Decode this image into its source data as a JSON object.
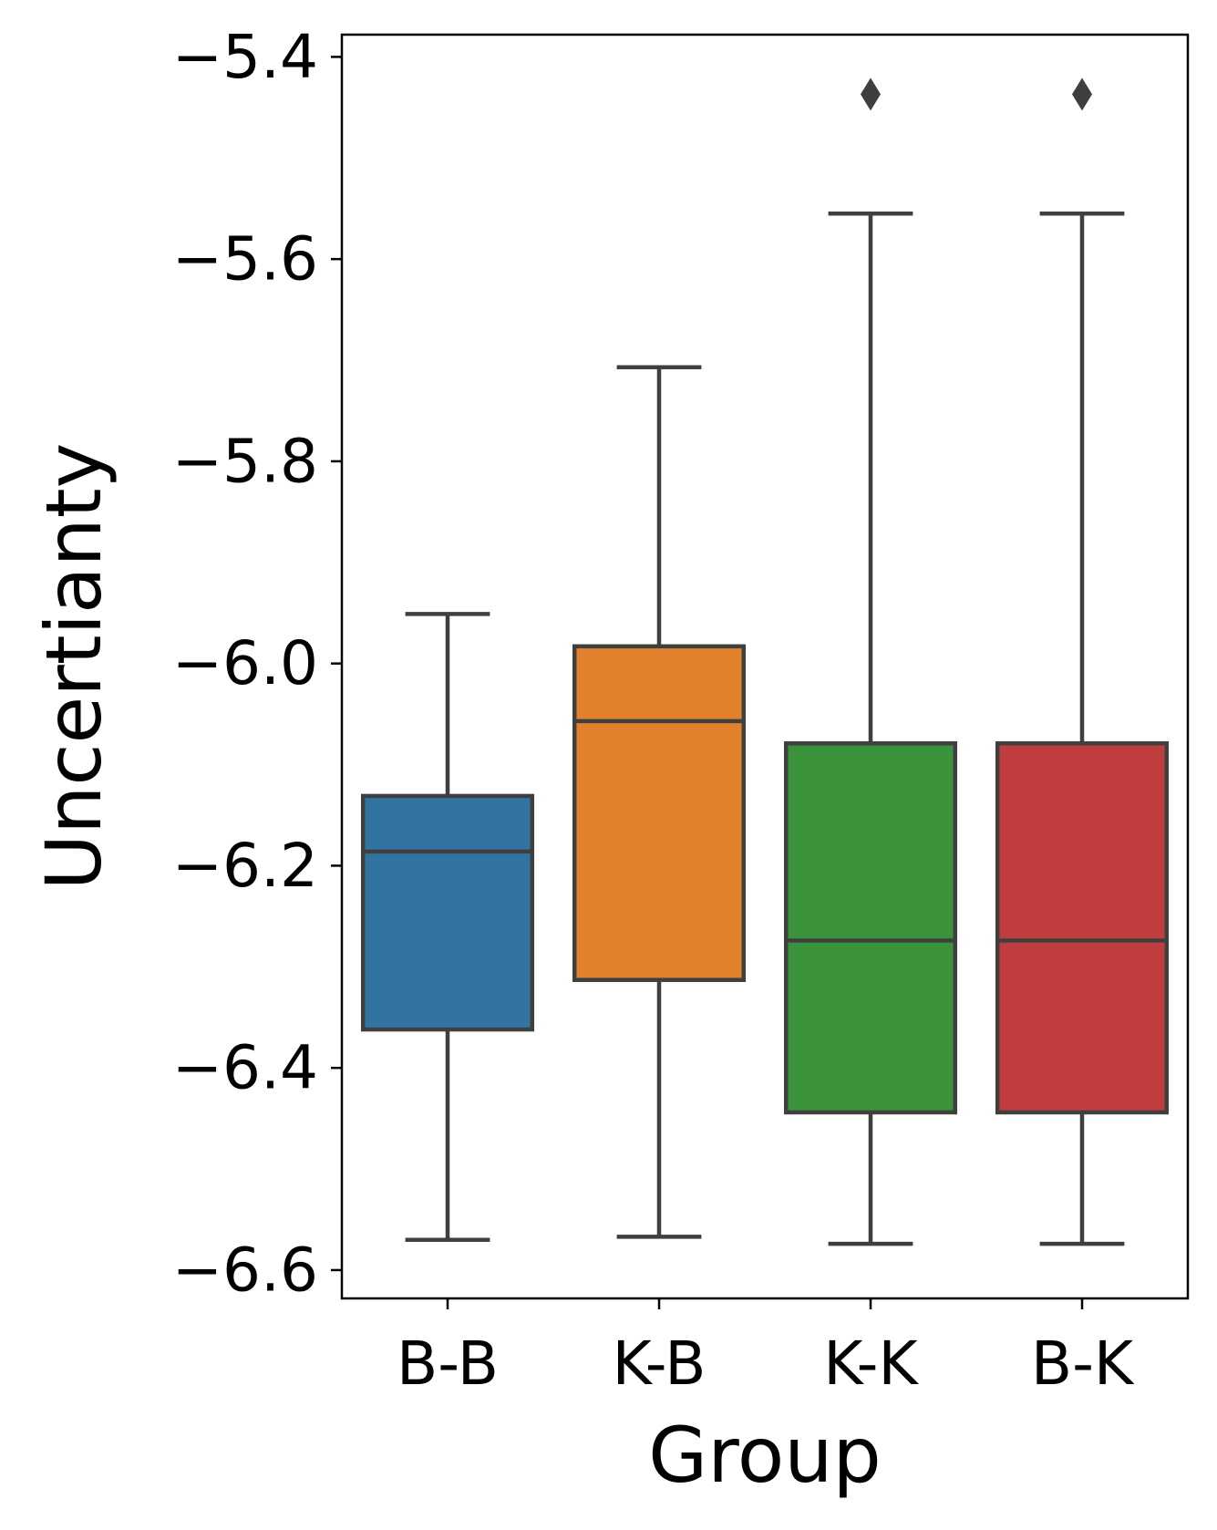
{
  "chart_data": {
    "type": "box",
    "title": "",
    "xlabel": "Group",
    "ylabel": "Uncertianty",
    "ylim": [
      -6.628,
      -5.378
    ],
    "yticks": [
      -5.4,
      -5.6,
      -5.8,
      -6.0,
      -6.2,
      -6.4,
      -6.6
    ],
    "ytick_labels": [
      "−5.4",
      "−5.6",
      "−5.8",
      "−6.0",
      "−6.2",
      "−6.4",
      "−6.6"
    ],
    "grid": false,
    "legend": "none",
    "box_edge_color": "#3f3f3f",
    "categories": [
      "B-B",
      "K-B",
      "K-K",
      "B-K"
    ],
    "series": [
      {
        "category": "B-B",
        "color": "#3274a1",
        "whisker_low": -6.57,
        "q1": -6.362,
        "median": -6.186,
        "q3": -6.131,
        "whisker_high": -5.951,
        "outliers": []
      },
      {
        "category": "K-B",
        "color": "#e1812c",
        "whisker_low": -6.567,
        "q1": -6.313,
        "median": -6.057,
        "q3": -5.983,
        "whisker_high": -5.707,
        "outliers": []
      },
      {
        "category": "K-K",
        "color": "#3a923a",
        "whisker_low": -6.574,
        "q1": -6.444,
        "median": -6.274,
        "q3": -6.079,
        "whisker_high": -5.555,
        "outliers": [
          -5.437
        ]
      },
      {
        "category": "B-K",
        "color": "#c03d3e",
        "whisker_low": -6.574,
        "q1": -6.444,
        "median": -6.274,
        "q3": -6.079,
        "whisker_high": -5.555,
        "outliers": [
          -5.437
        ]
      }
    ]
  }
}
